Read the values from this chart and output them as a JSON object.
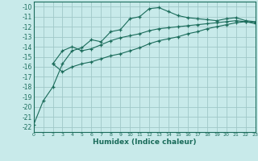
{
  "xlabel": "Humidex (Indice chaleur)",
  "bg_color": "#c8eaea",
  "grid_color": "#a0c8c8",
  "line_color": "#1a6b5a",
  "xlim": [
    0,
    23
  ],
  "ylim": [
    -22.5,
    -9.5
  ],
  "xticks": [
    0,
    1,
    2,
    3,
    4,
    5,
    6,
    7,
    8,
    9,
    10,
    11,
    12,
    13,
    14,
    15,
    16,
    17,
    18,
    19,
    20,
    21,
    22,
    23
  ],
  "yticks": [
    -10,
    -11,
    -12,
    -13,
    -14,
    -15,
    -16,
    -17,
    -18,
    -19,
    -20,
    -21,
    -22
  ],
  "curve1_x": [
    0,
    1,
    2,
    3,
    4,
    5,
    6,
    7,
    8,
    9,
    10,
    11,
    12,
    13,
    14,
    15,
    16,
    17,
    18,
    19,
    20,
    21,
    22,
    23
  ],
  "curve1_y": [
    -21.8,
    -19.4,
    -18.0,
    -15.7,
    -14.4,
    -14.1,
    -13.3,
    -13.5,
    -12.5,
    -12.3,
    -11.2,
    -11.0,
    -10.2,
    -10.1,
    -10.5,
    -10.9,
    -11.1,
    -11.2,
    -11.3,
    -11.4,
    -11.2,
    -11.1,
    -11.4,
    -11.5
  ],
  "curve2_x": [
    2,
    3,
    4,
    5,
    6,
    7,
    8,
    9,
    10,
    11,
    12,
    13,
    14,
    15,
    16,
    17,
    18,
    19,
    20,
    21,
    22,
    23
  ],
  "curve2_y": [
    -15.7,
    -14.4,
    -14.0,
    -14.4,
    -14.2,
    -13.8,
    -13.4,
    -13.1,
    -12.9,
    -12.7,
    -12.4,
    -12.2,
    -12.1,
    -12.0,
    -11.9,
    -11.8,
    -11.7,
    -11.6,
    -11.5,
    -11.4,
    -11.5,
    -11.6
  ],
  "curve3_x": [
    2,
    3,
    4,
    5,
    6,
    7,
    8,
    9,
    10,
    11,
    12,
    13,
    14,
    15,
    16,
    17,
    18,
    19,
    20,
    21,
    22,
    23
  ],
  "curve3_y": [
    -15.7,
    -16.5,
    -16.0,
    -15.7,
    -15.5,
    -15.2,
    -14.9,
    -14.7,
    -14.4,
    -14.1,
    -13.7,
    -13.4,
    -13.2,
    -13.0,
    -12.7,
    -12.5,
    -12.2,
    -12.0,
    -11.8,
    -11.6,
    -11.5,
    -11.7
  ]
}
